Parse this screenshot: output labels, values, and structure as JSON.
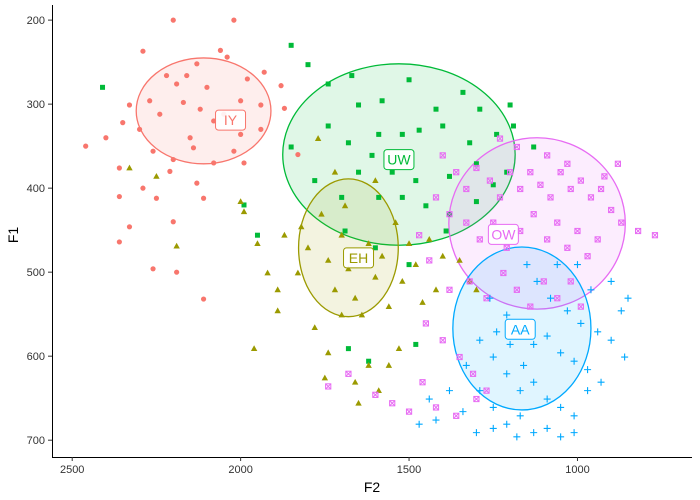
{
  "chart_data": {
    "type": "scatter",
    "title": "",
    "xlabel": "F2",
    "ylabel": "F1",
    "x_reversed": true,
    "y_reversed": true,
    "xlim": [
      2560,
      660
    ],
    "ylim": [
      182,
      720
    ],
    "x_ticks": [
      2500,
      2000,
      1500,
      1000
    ],
    "y_ticks": [
      200,
      300,
      400,
      500,
      600,
      700
    ],
    "grid": false,
    "legend": "none",
    "series": [
      {
        "name": "IY",
        "color": "#F8766D",
        "marker": "circle",
        "ellipse": {
          "cx": 2110,
          "cy": 308,
          "rx": 200,
          "ry": 63
        },
        "label_pos": [
          2030,
          319
        ],
        "points": [
          [
            2200,
            200
          ],
          [
            2020,
            200
          ],
          [
            2290,
            237
          ],
          [
            2040,
            244
          ],
          [
            2130,
            252
          ],
          [
            2220,
            266
          ],
          [
            2100,
            280
          ],
          [
            1980,
            270
          ],
          [
            2170,
            298
          ],
          [
            2240,
            312
          ],
          [
            2300,
            330
          ],
          [
            2080,
            320
          ],
          [
            2050,
            312
          ],
          [
            2150,
            340
          ],
          [
            1940,
            301
          ],
          [
            2000,
            296
          ],
          [
            2120,
            306
          ],
          [
            2190,
            276
          ],
          [
            2270,
            296
          ],
          [
            2350,
            322
          ],
          [
            2330,
            301
          ],
          [
            2260,
            356
          ],
          [
            2200,
            366
          ],
          [
            2360,
            376
          ],
          [
            2360,
            410
          ],
          [
            2210,
            380
          ],
          [
            2250,
            412
          ],
          [
            2290,
            400
          ],
          [
            2110,
            412
          ],
          [
            2200,
            440
          ],
          [
            2130,
            394
          ],
          [
            2330,
            446
          ],
          [
            2360,
            464
          ],
          [
            2260,
            496
          ],
          [
            2190,
            500
          ],
          [
            2110,
            532
          ],
          [
            2460,
            350
          ],
          [
            2400,
            340
          ],
          [
            2080,
            370
          ],
          [
            1940,
            330
          ],
          [
            1870,
            305
          ],
          [
            1830,
            360
          ],
          [
            1880,
            278
          ],
          [
            1930,
            262
          ],
          [
            2060,
            236
          ],
          [
            2160,
            266
          ],
          [
            2000,
            336
          ],
          [
            2020,
            356
          ],
          [
            2140,
            352
          ],
          [
            1990,
            370
          ]
        ]
      },
      {
        "name": "UW",
        "color": "#00BA38",
        "marker": "square",
        "ellipse": {
          "cx": 1530,
          "cy": 360,
          "rx": 345,
          "ry": 108
        },
        "label_pos": [
          1530,
          366
        ],
        "points": [
          [
            2410,
            280
          ],
          [
            1800,
            253
          ],
          [
            1740,
            276
          ],
          [
            1670,
            266
          ],
          [
            1580,
            296
          ],
          [
            1500,
            271
          ],
          [
            1420,
            306
          ],
          [
            1340,
            286
          ],
          [
            1290,
            306
          ],
          [
            1200,
            301
          ],
          [
            1650,
            301
          ],
          [
            1590,
            336
          ],
          [
            1520,
            336
          ],
          [
            1470,
            331
          ],
          [
            1400,
            326
          ],
          [
            1320,
            346
          ],
          [
            1240,
            336
          ],
          [
            1190,
            326
          ],
          [
            1130,
            351
          ],
          [
            1680,
            346
          ],
          [
            1740,
            326
          ],
          [
            1610,
            361
          ],
          [
            1550,
            381
          ],
          [
            1480,
            391
          ],
          [
            1380,
            386
          ],
          [
            1300,
            371
          ],
          [
            1250,
            396
          ],
          [
            1210,
            381
          ],
          [
            1850,
            351
          ],
          [
            1780,
            391
          ],
          [
            1700,
            411
          ],
          [
            1650,
            381
          ],
          [
            1590,
            411
          ],
          [
            1520,
            411
          ],
          [
            1450,
            421
          ],
          [
            1380,
            431
          ],
          [
            1300,
            416
          ],
          [
            1990,
            420
          ],
          [
            1850,
            230
          ],
          [
            1690,
            451
          ],
          [
            1600,
            471
          ],
          [
            1500,
            491
          ],
          [
            1390,
            451
          ],
          [
            1950,
            456
          ],
          [
            1680,
            591
          ],
          [
            1620,
            606
          ],
          [
            1480,
            586
          ]
        ]
      },
      {
        "name": "EH",
        "color": "#9B9A00",
        "marker": "triangle",
        "ellipse": {
          "cx": 1680,
          "cy": 471,
          "rx": 148,
          "ry": 82
        },
        "label_pos": [
          1650,
          483
        ],
        "points": [
          [
            2330,
            376
          ],
          [
            2250,
            386
          ],
          [
            2190,
            469
          ],
          [
            1990,
            428
          ],
          [
            1950,
            466
          ],
          [
            1920,
            501
          ],
          [
            1890,
            521
          ],
          [
            1960,
            591
          ],
          [
            1890,
            546
          ],
          [
            1830,
            501
          ],
          [
            1800,
            471
          ],
          [
            1760,
            431
          ],
          [
            1740,
            486
          ],
          [
            1720,
            521
          ],
          [
            1700,
            456
          ],
          [
            1680,
            496
          ],
          [
            1660,
            531
          ],
          [
            1640,
            551
          ],
          [
            1620,
            466
          ],
          [
            1600,
            506
          ],
          [
            1580,
            481
          ],
          [
            1560,
            541
          ],
          [
            1540,
            441
          ],
          [
            1520,
            511
          ],
          [
            1500,
            466
          ],
          [
            1480,
            491
          ],
          [
            1460,
            536
          ],
          [
            1440,
            461
          ],
          [
            1420,
            521
          ],
          [
            1400,
            481
          ],
          [
            1780,
            566
          ],
          [
            1740,
            596
          ],
          [
            1700,
            551
          ],
          [
            1660,
            631
          ],
          [
            1620,
            611
          ],
          [
            1590,
            641
          ],
          [
            1560,
            611
          ],
          [
            1530,
            591
          ],
          [
            1770,
            341
          ],
          [
            1720,
            381
          ],
          [
            1690,
            421
          ],
          [
            1820,
            446
          ],
          [
            1750,
            626
          ],
          [
            1650,
            656
          ],
          [
            1350,
            486
          ],
          [
            1320,
            511
          ],
          [
            1300,
            521
          ],
          [
            1870,
            456
          ],
          [
            2000,
            416
          ],
          [
            1600,
            391
          ]
        ]
      },
      {
        "name": "OW",
        "color": "#E76BF3",
        "marker": "boxx",
        "ellipse": {
          "cx": 1120,
          "cy": 442,
          "rx": 262,
          "ry": 102
        },
        "label_pos": [
          1220,
          455
        ],
        "points": [
          [
            1400,
            361
          ],
          [
            1360,
            381
          ],
          [
            1330,
            401
          ],
          [
            1300,
            376
          ],
          [
            1260,
            391
          ],
          [
            1230,
            411
          ],
          [
            1200,
            381
          ],
          [
            1170,
            401
          ],
          [
            1140,
            381
          ],
          [
            1110,
            396
          ],
          [
            1080,
            411
          ],
          [
            1050,
            381
          ],
          [
            1020,
            401
          ],
          [
            990,
            391
          ],
          [
            960,
            411
          ],
          [
            930,
            401
          ],
          [
            900,
            426
          ],
          [
            870,
            441
          ],
          [
            820,
            451
          ],
          [
            770,
            456
          ],
          [
            1330,
            441
          ],
          [
            1290,
            461
          ],
          [
            1250,
            441
          ],
          [
            1210,
            471
          ],
          [
            1170,
            451
          ],
          [
            1130,
            431
          ],
          [
            1090,
            461
          ],
          [
            1060,
            441
          ],
          [
            1030,
            471
          ],
          [
            1000,
            451
          ],
          [
            970,
            481
          ],
          [
            940,
            461
          ],
          [
            1420,
            411
          ],
          [
            1380,
            431
          ],
          [
            1470,
            456
          ],
          [
            1440,
            486
          ],
          [
            1380,
            521
          ],
          [
            1320,
            511
          ],
          [
            1270,
            531
          ],
          [
            1220,
            501
          ],
          [
            1180,
            521
          ],
          [
            1140,
            541
          ],
          [
            1100,
            511
          ],
          [
            1060,
            531
          ],
          [
            1020,
            511
          ],
          [
            990,
            541
          ],
          [
            1450,
            561
          ],
          [
            1400,
            581
          ],
          [
            1350,
            601
          ],
          [
            1310,
            621
          ],
          [
            1270,
            641
          ],
          [
            1460,
            631
          ],
          [
            1420,
            661
          ],
          [
            1360,
            671
          ],
          [
            1300,
            651
          ],
          [
            1740,
            636
          ],
          [
            1680,
            621
          ],
          [
            1600,
            646
          ],
          [
            1550,
            656
          ],
          [
            1500,
            666
          ],
          [
            1230,
            341
          ],
          [
            1180,
            351
          ],
          [
            1090,
            361
          ],
          [
            1030,
            371
          ],
          [
            920,
            386
          ],
          [
            880,
            371
          ]
        ]
      },
      {
        "name": "AA",
        "color": "#00A9FF",
        "marker": "plus",
        "ellipse": {
          "cx": 1165,
          "cy": 567,
          "rx": 205,
          "ry": 97
        },
        "label_pos": [
          1170,
          568
        ],
        "points": [
          [
            1150,
            491
          ],
          [
            1120,
            511
          ],
          [
            1080,
            531
          ],
          [
            1030,
            546
          ],
          [
            990,
            561
          ],
          [
            940,
            571
          ],
          [
            900,
            581
          ],
          [
            860,
            601
          ],
          [
            1260,
            531
          ],
          [
            1210,
            551
          ],
          [
            1170,
            571
          ],
          [
            1130,
            586
          ],
          [
            1090,
            576
          ],
          [
            1050,
            596
          ],
          [
            1010,
            606
          ],
          [
            970,
            616
          ],
          [
            930,
            631
          ],
          [
            1290,
            581
          ],
          [
            1250,
            601
          ],
          [
            1210,
            621
          ],
          [
            1170,
            641
          ],
          [
            1130,
            631
          ],
          [
            1090,
            651
          ],
          [
            1050,
            661
          ],
          [
            1010,
            671
          ],
          [
            970,
            641
          ],
          [
            1330,
            611
          ],
          [
            1290,
            641
          ],
          [
            1250,
            661
          ],
          [
            1210,
            681
          ],
          [
            1170,
            671
          ],
          [
            1130,
            691
          ],
          [
            1090,
            686
          ],
          [
            1050,
            696
          ],
          [
            1010,
            691
          ],
          [
            1380,
            641
          ],
          [
            1340,
            666
          ],
          [
            1300,
            691
          ],
          [
            1250,
            686
          ],
          [
            1420,
            676
          ],
          [
            1180,
            696
          ],
          [
            870,
            546
          ],
          [
            850,
            531
          ],
          [
            900,
            511
          ],
          [
            960,
            521
          ],
          [
            1000,
            491
          ],
          [
            1060,
            491
          ],
          [
            1160,
            611
          ],
          [
            1200,
            586
          ],
          [
            1240,
            571
          ],
          [
            1440,
            651
          ],
          [
            1470,
            681
          ]
        ]
      }
    ]
  }
}
